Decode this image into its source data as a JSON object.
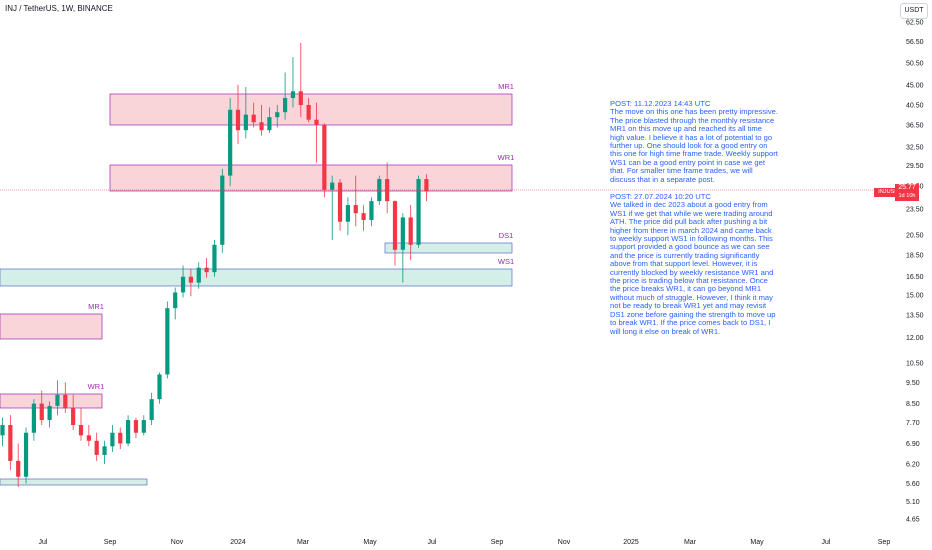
{
  "header": {
    "symbol_line": "INJ / TetherUS, 1W, BINANCE",
    "currency_button": "USDT"
  },
  "price_axis": {
    "ticks": [
      "62.50",
      "56.50",
      "50.50",
      "45.00",
      "40.50",
      "36.50",
      "32.50",
      "29.50",
      "26.50",
      "23.50",
      "20.50",
      "18.50",
      "16.50",
      "15.00",
      "13.50",
      "12.00",
      "10.50",
      "9.50",
      "8.50",
      "7.70",
      "6.90",
      "6.20",
      "5.60",
      "5.10",
      "4.65"
    ],
    "current_symbol": "INJUSDT",
    "current_price": "25.77",
    "countdown": "1d 10h"
  },
  "time_axis": {
    "labels": [
      "Jul",
      "Sep",
      "Nov",
      "2024",
      "Mar",
      "May",
      "Jul",
      "Sep",
      "Nov",
      "2025",
      "Mar",
      "May",
      "Jul",
      "Sep"
    ]
  },
  "zones": [
    {
      "label": "MR1",
      "kind": "resistance"
    },
    {
      "label": "WR1",
      "kind": "resistance"
    },
    {
      "label": "DS1",
      "kind": "support"
    },
    {
      "label": "WS1",
      "kind": "support"
    },
    {
      "label": "MR1",
      "kind": "resistance"
    },
    {
      "label": "WR1",
      "kind": "resistance"
    }
  ],
  "notes": {
    "post1": "POST: 11.12.2023 14:43 UTC\nThe move on this one has been pretty impressive. The price blasted through the monthly resistance MR1 on this move up and reached its all time high value. I believe it has a lot of potential to go further up. One should look for a good entry on this one for high time frame trade. Weekly support WS1 can be a good entry point in case we get that. For smaller time frame trades, we will discuss that in a separate post.",
    "post2": "POST: 27.07.2024 10:20 UTC\nWe talked in dec 2023 about a good entry from WS1 if we get that while we were trading around ATH. The price did pull back after pushing a bit higher from there in march 2024 and came back to weekly support WS1 in following months. This support provided a good bounce as we can see and the price is currently trading significantly above from that support level. However, it is currently blocked by weekly resistance WR1 and the price is trading below that resistance. Once the price breaks WR1, it can go beyond MR1 without much of struggle. However, I think it may not be ready to break WR1 yet and may revisit DS1 zone before gaining the strength to move up to break WR1. If the price comes back to DS1, I will long it else on break of WR1."
  },
  "colors": {
    "up": "#089981",
    "down": "#f23645",
    "resistance_fill": "#f7c9d0",
    "resistance_border": "#9c27b0",
    "support_fill": "#c8ebe2",
    "support_border": "#5b6bc0",
    "note_text": "#2962ff",
    "zone_label": "#9c27b0"
  },
  "chart_data": {
    "type": "candlestick",
    "interval": "1W",
    "current_price": 25.77,
    "candles": [
      [
        7.2,
        7.9,
        6.8,
        7.6
      ],
      [
        7.6,
        8.0,
        6.0,
        6.3
      ],
      [
        6.3,
        6.9,
        5.5,
        5.8
      ],
      [
        5.8,
        7.5,
        5.6,
        7.3
      ],
      [
        7.3,
        8.7,
        7.0,
        8.5
      ],
      [
        8.5,
        9.1,
        7.6,
        7.8
      ],
      [
        7.8,
        8.6,
        7.5,
        8.4
      ],
      [
        8.4,
        9.6,
        8.0,
        8.9
      ],
      [
        8.9,
        9.5,
        8.1,
        8.3
      ],
      [
        8.3,
        8.9,
        7.4,
        7.6
      ],
      [
        7.6,
        8.3,
        7.0,
        7.2
      ],
      [
        7.2,
        7.6,
        6.8,
        7.0
      ],
      [
        7.0,
        7.3,
        6.3,
        6.5
      ],
      [
        6.5,
        7.0,
        6.2,
        6.8
      ],
      [
        6.8,
        7.6,
        6.6,
        7.3
      ],
      [
        7.3,
        7.5,
        6.7,
        6.9
      ],
      [
        6.9,
        8.0,
        6.8,
        7.8
      ],
      [
        7.8,
        7.9,
        7.1,
        7.3
      ],
      [
        7.3,
        8.0,
        7.2,
        7.8
      ],
      [
        7.8,
        9.0,
        7.6,
        8.7
      ],
      [
        8.7,
        10.0,
        8.5,
        9.9
      ],
      [
        9.9,
        14.5,
        9.7,
        14.0
      ],
      [
        14.0,
        15.6,
        13.2,
        15.2
      ],
      [
        15.2,
        17.5,
        14.8,
        16.5
      ],
      [
        16.5,
        17.2,
        14.9,
        16.0
      ],
      [
        16.0,
        17.8,
        15.5,
        17.3
      ],
      [
        17.3,
        18.2,
        16.4,
        16.9
      ],
      [
        16.9,
        20.0,
        16.5,
        19.5
      ],
      [
        19.5,
        29.0,
        18.7,
        28.0
      ],
      [
        28.0,
        42.0,
        26.5,
        39.5
      ],
      [
        39.5,
        45.0,
        33.0,
        35.5
      ],
      [
        35.5,
        44.5,
        34.0,
        38.5
      ],
      [
        38.5,
        41.0,
        36.0,
        37.0
      ],
      [
        37.0,
        40.5,
        34.5,
        35.5
      ],
      [
        35.5,
        40.0,
        35.0,
        38.0
      ],
      [
        38.0,
        40.5,
        36.0,
        39.0
      ],
      [
        39.0,
        48.0,
        37.5,
        42.0
      ],
      [
        42.0,
        52.0,
        40.0,
        43.5
      ],
      [
        43.5,
        56.0,
        38.0,
        40.5
      ],
      [
        40.5,
        42.0,
        37.0,
        37.5
      ],
      [
        37.5,
        41.0,
        30.0,
        36.5
      ],
      [
        36.5,
        36.8,
        25.0,
        26.0
      ],
      [
        26.0,
        28.0,
        20.0,
        27.0
      ],
      [
        27.0,
        27.5,
        21.0,
        22.0
      ],
      [
        22.0,
        25.0,
        20.5,
        24.0
      ],
      [
        24.0,
        28.0,
        21.5,
        23.0
      ],
      [
        23.0,
        24.0,
        21.0,
        22.2
      ],
      [
        22.2,
        25.0,
        21.5,
        24.5
      ],
      [
        24.5,
        28.0,
        24.0,
        27.5
      ],
      [
        27.5,
        30.0,
        23.0,
        24.5
      ],
      [
        24.5,
        24.6,
        17.5,
        19.0
      ],
      [
        19.0,
        23.0,
        16.0,
        22.5
      ],
      [
        22.5,
        24.0,
        18.0,
        19.5
      ],
      [
        19.5,
        28.0,
        19.2,
        27.5
      ],
      [
        27.5,
        28.2,
        24.5,
        25.77
      ]
    ]
  }
}
